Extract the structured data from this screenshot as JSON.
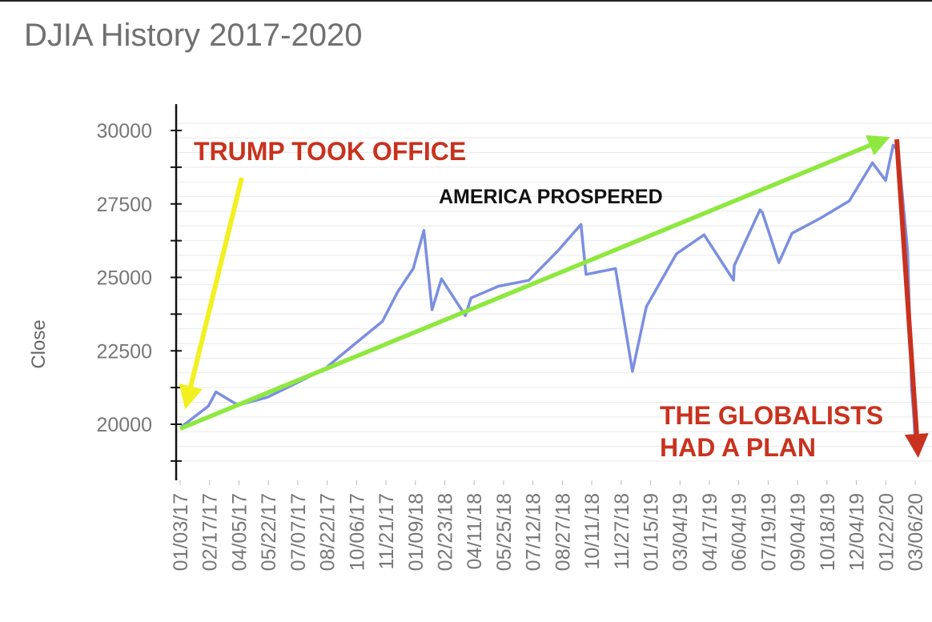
{
  "title": "DJIA History 2017-2020",
  "chart_data": {
    "type": "line",
    "ylabel": "Close",
    "xlabel": "",
    "ylim": [
      18500,
      31000
    ],
    "y_ticks": [
      20000,
      22500,
      25000,
      27500,
      30000
    ],
    "x_tick_labels": [
      "01/03/17",
      "02/17/17",
      "04/05/17",
      "05/22/17",
      "07/07/17",
      "08/22/17",
      "10/06/17",
      "11/21/17",
      "01/09/18",
      "02/23/18",
      "04/11/18",
      "05/25/18",
      "07/12/18",
      "08/27/18",
      "10/11/18",
      "11/27/18",
      "01/15/19",
      "03/04/19",
      "04/17/19",
      "06/04/19",
      "07/19/19",
      "09/04/19",
      "10/18/19",
      "12/04/19",
      "01/22/20",
      "03/06/20"
    ],
    "grid": true,
    "legend": "none",
    "series": [
      {
        "color": "#7b8fe0",
        "x": [
          "01/03/17",
          "02/17/17",
          "03/01/17",
          "04/05/17",
          "05/22/17",
          "07/07/17",
          "08/22/17",
          "10/06/17",
          "11/21/17",
          "12/15/17",
          "01/09/18",
          "01/26/18",
          "02/08/18",
          "02/23/18",
          "04/02/18",
          "04/11/18",
          "05/25/18",
          "07/12/18",
          "08/27/18",
          "10/03/18",
          "10/11/18",
          "11/27/18",
          "12/24/18",
          "01/15/19",
          "03/04/19",
          "04/17/19",
          "06/03/19",
          "06/04/19",
          "07/15/19",
          "07/19/19",
          "08/14/19",
          "09/04/19",
          "10/18/19",
          "12/04/19",
          "01/10/20",
          "01/31/20",
          "02/12/20",
          "02/20/20",
          "03/06/20",
          "03/09/20",
          "03/12/20",
          "03/16/20",
          "03/18/20"
        ],
        "values": [
          19880,
          20620,
          21100,
          20650,
          20920,
          21400,
          21900,
          22700,
          23500,
          24500,
          25300,
          26600,
          23900,
          24950,
          23700,
          24300,
          24700,
          24900,
          25900,
          26800,
          25100,
          25300,
          21800,
          24000,
          25800,
          26450,
          24900,
          25400,
          27300,
          27200,
          25500,
          26500,
          27000,
          27600,
          28900,
          28300,
          29500,
          29300,
          25900,
          23800,
          21300,
          20200,
          19300
        ]
      }
    ],
    "annotations": [
      {
        "text": "TRUMP TOOK OFFICE",
        "color": "#c8321e",
        "arrow_color": "#f2f020",
        "points_to_x": "01/03/17"
      },
      {
        "text": "AMERICA PROSPERED",
        "color": "#111111",
        "arrow_color": "#8ee840",
        "from": [
          "01/03/17",
          19850
        ],
        "to": [
          "02/12/20",
          29800
        ]
      },
      {
        "text": "THE GLOBALISTS\nHAD A PLAN",
        "color": "#c8321e",
        "arrow_color": "#c8321e",
        "from": [
          "02/12/20",
          29700
        ],
        "to": [
          "03/18/20",
          18600
        ]
      }
    ]
  }
}
